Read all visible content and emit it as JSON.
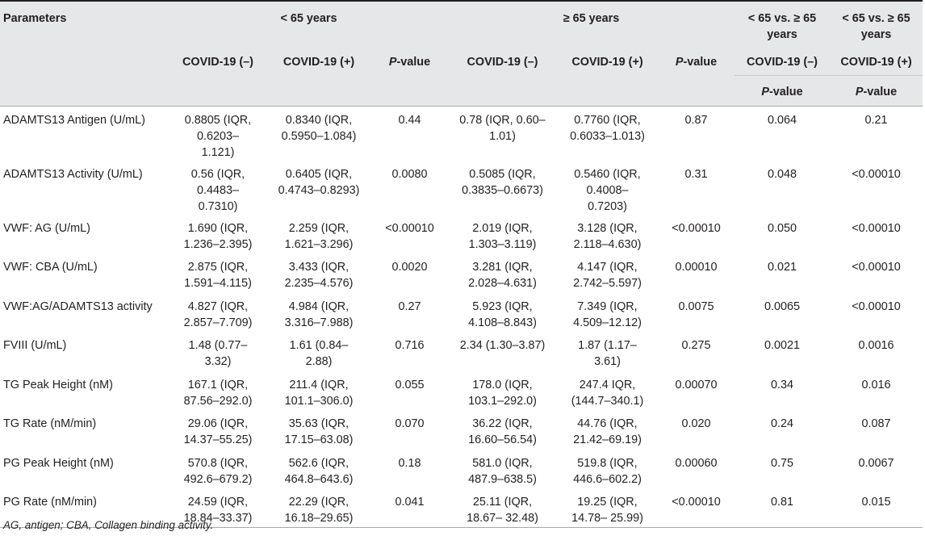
{
  "header": {
    "parameters": "Parameters",
    "group_under65": "< 65 years",
    "group_over65": "≥ 65 years",
    "compare1": "< 65 vs. ≥ 65 years",
    "compare2": "< 65 vs. ≥ 65 years",
    "covid_neg": "COVID-19 (–)",
    "covid_pos": "COVID-19 (+)",
    "pvalue_p": "P",
    "pvalue_rest": "-value"
  },
  "rows": [
    {
      "param": "ADAMTS13 Antigen (U/mL)",
      "u_neg": "0.8805 (IQR, 0.6203–1.121)",
      "u_pos": "0.8340 (IQR, 0.5950–1.084)",
      "u_p": "0.44",
      "o_neg": "0.78 (IQR, 0.60–1.01)",
      "o_pos": "0.7760 (IQR, 0.6033–1.013)",
      "o_p": "0.87",
      "c_neg": "0.064",
      "c_pos": "0.21"
    },
    {
      "param": "ADAMTS13 Activity (U/mL)",
      "u_neg": "0.56 (IQR, 0.4483–0.7310)",
      "u_pos": "0.6405 (IQR, 0.4743–0.8293)",
      "u_p": "0.0080",
      "o_neg": "0.5085 (IQR, 0.3835–0.6673)",
      "o_pos": "0.5460 (IQR, 0.4008–0.7203)",
      "o_p": "0.31",
      "c_neg": "0.048",
      "c_pos": "<0.00010"
    },
    {
      "param": "VWF: AG (U/mL)",
      "u_neg": "1.690 (IQR, 1.236–2.395)",
      "u_pos": "2.259 (IQR, 1.621–3.296)",
      "u_p": "<0.00010",
      "o_neg": "2.019 (IQR, 1.303–3.119)",
      "o_pos": "3.128 (IQR, 2.118–4.630)",
      "o_p": "<0.00010",
      "c_neg": "0.050",
      "c_pos": "<0.00010"
    },
    {
      "param": "VWF: CBA (U/mL)",
      "u_neg": "2.875 (IQR, 1.591–4.115)",
      "u_pos": "3.433 (IQR, 2.235–4.576)",
      "u_p": "0.0020",
      "o_neg": "3.281 (IQR, 2.028–4.631)",
      "o_pos": "4.147 (IQR, 2.742–5.597)",
      "o_p": "0.00010",
      "c_neg": "0.021",
      "c_pos": "<0.00010"
    },
    {
      "param": "VWF:AG/ADAMTS13 activity",
      "u_neg": "4.827 (IQR, 2.857–7.709)",
      "u_pos": "4.984 (IQR, 3.316–7.988)",
      "u_p": "0.27",
      "o_neg": "5.923 (IQR, 4.108–8.843)",
      "o_pos": "7.349 (IQR, 4.509–12.12)",
      "o_p": "0.0075",
      "c_neg": "0.0065",
      "c_pos": "<0.00010"
    },
    {
      "param": "FVIII (U/mL)",
      "u_neg": "1.48 (0.77–3.32)",
      "u_pos": "1.61 (0.84–2.88)",
      "u_p": "0.716",
      "o_neg": "2.34 (1.30–3.87)",
      "o_pos": "1.87 (1.17–3.61)",
      "o_p": "0.275",
      "c_neg": "0.0021",
      "c_pos": "0.0016"
    },
    {
      "param": "TG Peak Height (nM)",
      "u_neg": "167.1 (IQR, 87.56–292.0)",
      "u_pos": "211.4 (IQR, 101.1–306.0)",
      "u_p": "0.055",
      "o_neg": "178.0 (IQR, 103.1–292.0)",
      "o_pos": "247.4 IQR, (144.7–340.1)",
      "o_p": "0.00070",
      "c_neg": "0.34",
      "c_pos": "0.016"
    },
    {
      "param": "TG Rate (nM/min)",
      "u_neg": "29.06 (IQR, 14.37–55.25)",
      "u_pos": "35.63 (IQR, 17.15–63.08)",
      "u_p": "0.070",
      "o_neg": "36.22 (IQR, 16.60–56.54)",
      "o_pos": "44.76 (IQR, 21.42–69.19)",
      "o_p": "0.020",
      "c_neg": "0.24",
      "c_pos": "0.087"
    },
    {
      "param": "PG Peak Height (nM)",
      "u_neg": "570.8 (IQR, 492.6–679.2)",
      "u_pos": "562.6 (IQR, 464.8–643.6)",
      "u_p": "0.18",
      "o_neg": "581.0 (IQR, 487.9–638.5)",
      "o_pos": "519.8 (IQR, 446.6–602.2)",
      "o_p": "0.00060",
      "c_neg": "0.75",
      "c_pos": "0.0067"
    },
    {
      "param": "PG Rate (nM/min)",
      "u_neg": "24.59 (IQR, 18.84–33.37)",
      "u_pos": "22.29 (IQR, 16.18–29.65)",
      "u_p": "0.041",
      "o_neg": "25.11 (IQR, 18.67– 32.48)",
      "o_pos": "19.25 (IQR, 14.78– 25.99)",
      "o_p": "<0.00010",
      "c_neg": "0.81",
      "c_pos": "0.015"
    }
  ],
  "footnote": "AG, antigen; CBA, Collagen binding activity."
}
